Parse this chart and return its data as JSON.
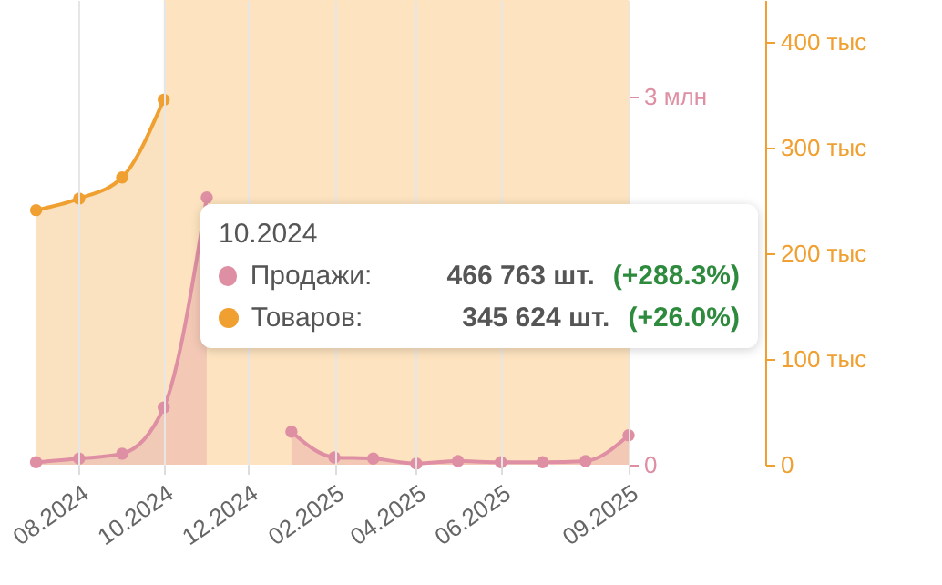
{
  "chart_data": {
    "type": "area",
    "x": [
      "2024-07",
      "2024-08",
      "2024-09",
      "2024-10",
      "2024-11",
      "2024-12",
      "2025-01",
      "2025-02",
      "2025-03",
      "2025-04",
      "2025-05",
      "2025-06",
      "2025-07",
      "2025-08",
      "2025-09"
    ],
    "series": [
      {
        "name": "Товаров:",
        "color": "#f0a030",
        "axis": "y2",
        "values": [
          241,
          252,
          272,
          345.624,
          null,
          null,
          null,
          null,
          null,
          null,
          null,
          null,
          null,
          null,
          null
        ]
      },
      {
        "name": "Продажи:",
        "color": "#df8fa3",
        "axis": "y",
        "values": [
          0.02,
          0.05,
          0.09,
          0.466763,
          2.18,
          null,
          0.27,
          0.06,
          0.05,
          0.01,
          0.03,
          0.02,
          0.02,
          0.03,
          0.24
        ]
      }
    ],
    "xlim": [
      "2024-06-05",
      "2025-09"
    ],
    "xticks": [
      {
        "value": "2024-08",
        "label": "08.2024"
      },
      {
        "value": "2024-10",
        "label": "10.2024"
      },
      {
        "value": "2024-12",
        "label": "12.2024"
      },
      {
        "value": "2025-02",
        "label": "02.2025"
      },
      {
        "value": "2025-04",
        "label": "04.2025"
      },
      {
        "value": "2025-06",
        "label": "06.2025"
      },
      {
        "value": "2025-09",
        "label": "09.2025"
      }
    ],
    "ylim": [
      0,
      3.79
    ],
    "yticks": [
      0,
      {
        "value": 3,
        "label": "3 млн"
      }
    ],
    "y2lim": [
      0,
      440
    ],
    "y2ticks": [
      0,
      {
        "value": 100,
        "label": "100 тыс"
      },
      {
        "value": 200,
        "label": "200 тыс"
      },
      {
        "value": 300,
        "label": "300 тыс"
      },
      {
        "value": 400,
        "label": "400 тыс"
      }
    ],
    "bands": [
      {
        "axis": "x",
        "from": "2024-10",
        "to": "2025-09",
        "color": "#fde3bf"
      }
    ],
    "grid": "x",
    "legend": "center",
    "marker": "circle",
    "annotations": [
      "10.2024",
      "466 763 шт.",
      "(+288.3%)",
      "345 624 шт.",
      "(+26.0%)"
    ]
  }
}
